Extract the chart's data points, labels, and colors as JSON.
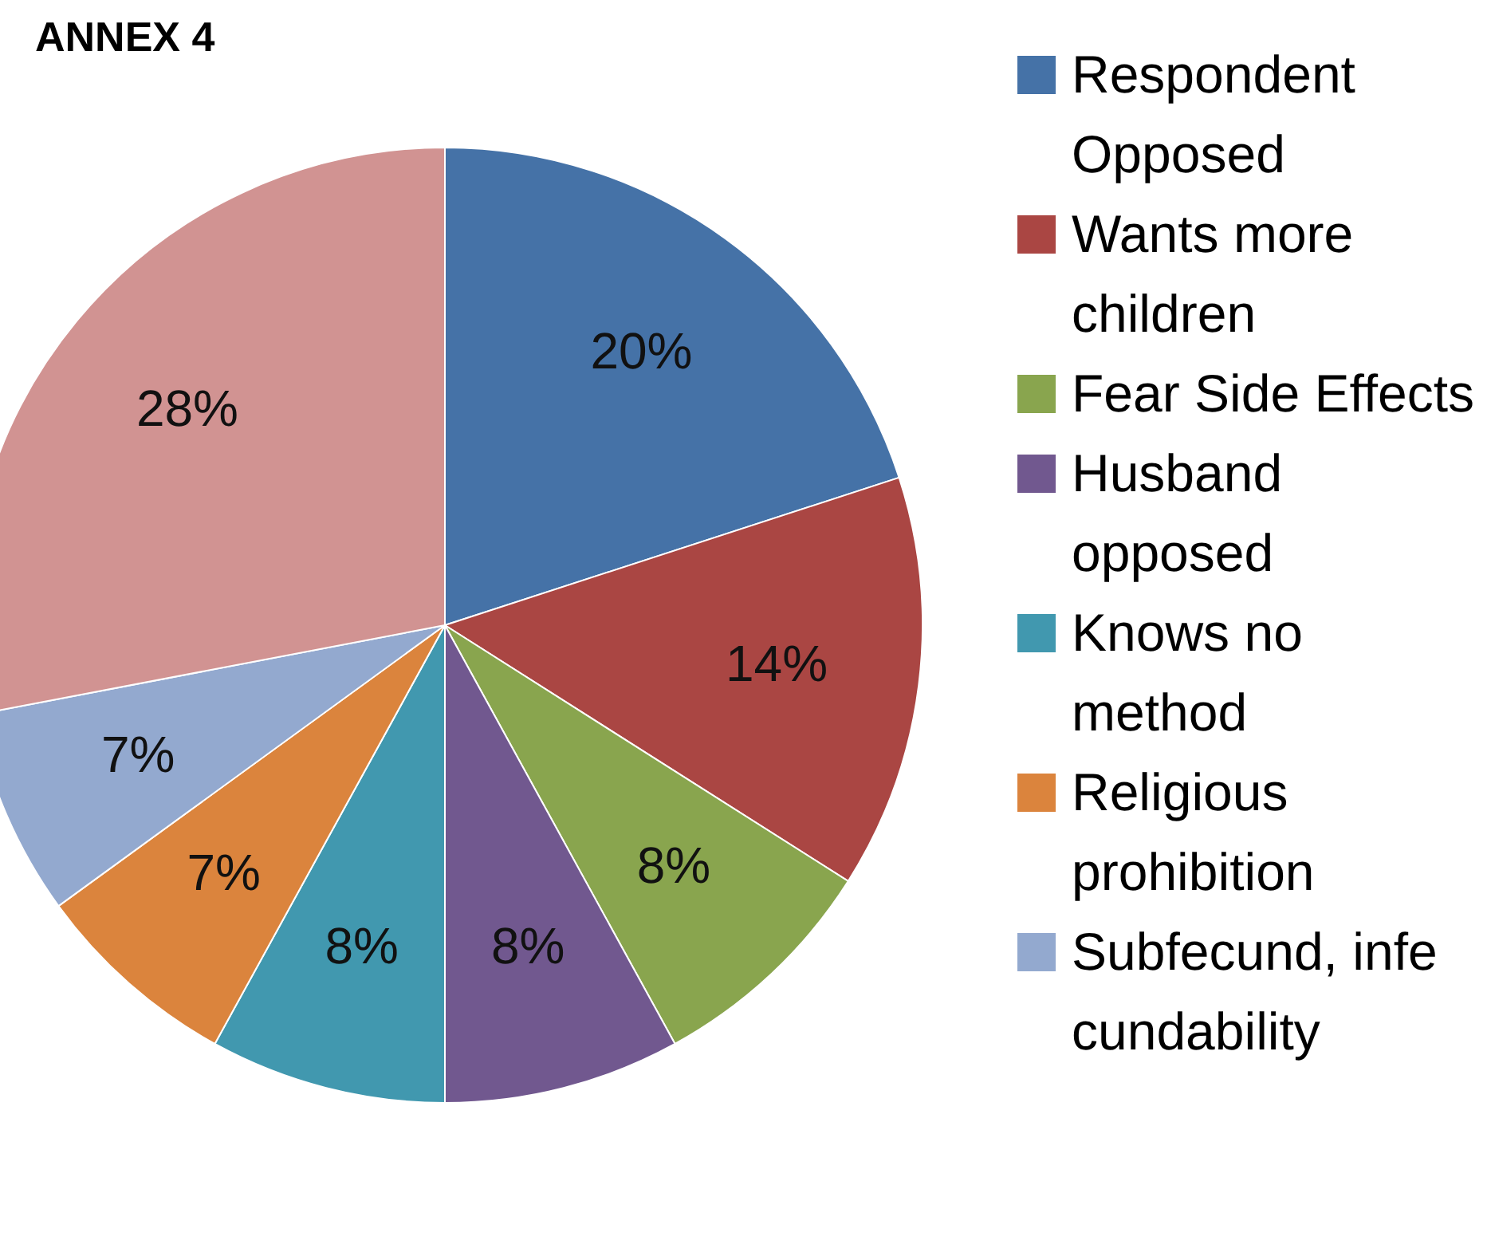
{
  "chart_data": {
    "type": "pie",
    "title": "ANNEX 4",
    "categories": [
      "Respondent Opposed",
      "Wants more children",
      "Fear Side Effects",
      "Husband opposed",
      "Knows no method",
      "Religious prohibition",
      "Subfecund, infe cundability",
      null
    ],
    "values": [
      20,
      14,
      8,
      8,
      8,
      7,
      7,
      28
    ],
    "value_labels": [
      "20%",
      "14%",
      "8%",
      "8%",
      "8%",
      "7%",
      "7%",
      "28%"
    ],
    "colors": [
      "#4572a7",
      "#aa4643",
      "#89a54e",
      "#71588f",
      "#4198af",
      "#db843d",
      "#93a9cf",
      "#d19392"
    ],
    "legend": "right"
  }
}
